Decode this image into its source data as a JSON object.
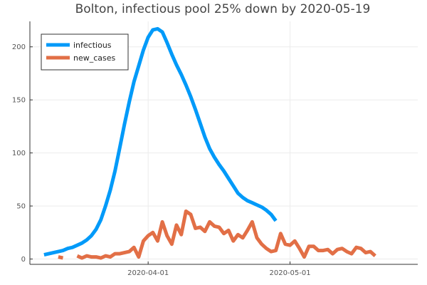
{
  "chart_data": {
    "type": "line",
    "title": "Bolton, infectious pool 25% down by 2020-05-19",
    "xlabel": "",
    "ylabel": "",
    "x_start": "2020-03-10",
    "x_tick_labels": [
      "2020-04-01",
      "2020-05-01"
    ],
    "y_ticks": [
      0,
      50,
      100,
      150,
      200
    ],
    "xlim": [
      "2020-03-07",
      "2020-05-28"
    ],
    "ylim": [
      -5,
      224
    ],
    "grid": true,
    "legend_position": "top-left",
    "series": [
      {
        "name": "infectious",
        "color": "#009AF9",
        "start": "2020-03-10",
        "values": [
          4,
          5,
          6,
          7,
          8,
          10,
          11,
          13,
          15,
          18,
          22,
          28,
          37,
          50,
          65,
          83,
          105,
          127,
          148,
          167,
          182,
          197,
          209,
          216,
          217,
          214,
          204,
          193,
          183,
          174,
          164,
          153,
          141,
          128,
          115,
          104,
          96,
          89,
          83,
          76,
          69,
          62,
          58,
          55,
          53,
          51,
          49,
          46,
          42,
          36
        ]
      },
      {
        "name": "new_cases",
        "color": "#E26F46",
        "start": "2020-03-10",
        "values": [
          null,
          null,
          null,
          2,
          1,
          null,
          null,
          3,
          1,
          3,
          2,
          2,
          1,
          3,
          2,
          5,
          5,
          6,
          7,
          11,
          2,
          17,
          22,
          25,
          17,
          35,
          22,
          14,
          32,
          23,
          45,
          42,
          29,
          30,
          26,
          35,
          31,
          30,
          24,
          27,
          17,
          23,
          20,
          27,
          35,
          20,
          14,
          10,
          7,
          8,
          24,
          14,
          13,
          17,
          10,
          2,
          12,
          12,
          8,
          8,
          9,
          5,
          9,
          10,
          7,
          5,
          11,
          10,
          6,
          7,
          3
        ]
      }
    ]
  }
}
